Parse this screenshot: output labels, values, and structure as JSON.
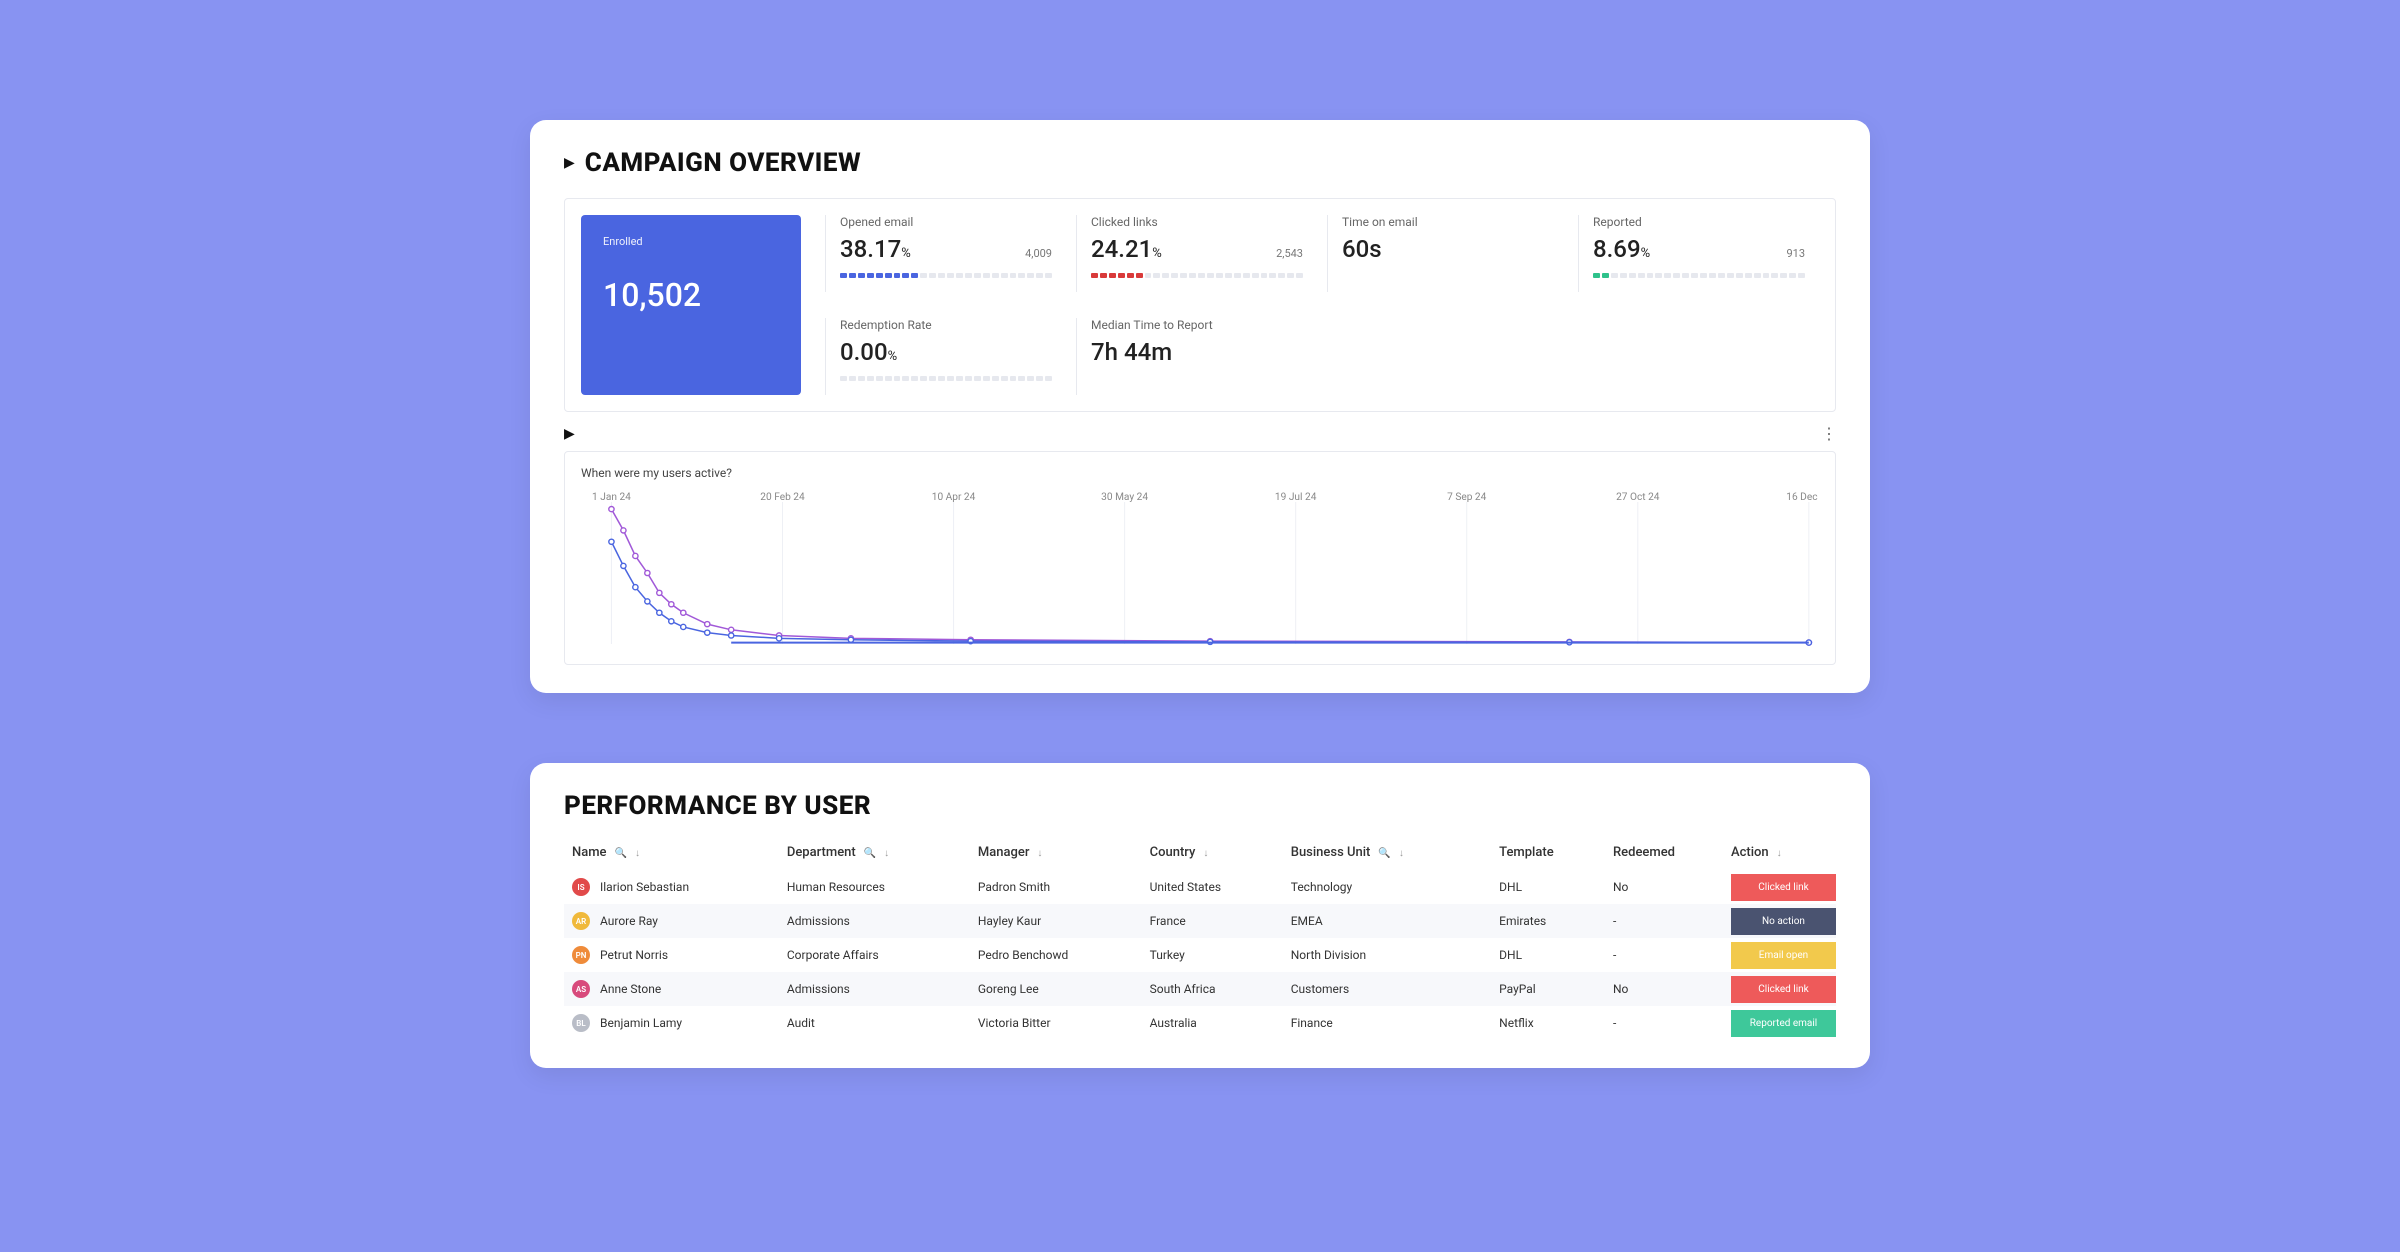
{
  "background_color": "#8893f2",
  "overview": {
    "title": "CAMPAIGN OVERVIEW",
    "enrolled": {
      "label": "Enrolled",
      "value": "10,502",
      "bg_color": "#4a65e0"
    },
    "metrics": [
      {
        "label": "Opened email",
        "value": "38.17",
        "unit": "%",
        "count": "4,009",
        "fill_segments": 9,
        "total_segments": 24,
        "fill_color": "#4a65e0"
      },
      {
        "label": "Clicked links",
        "value": "24.21",
        "unit": "%",
        "count": "2,543",
        "fill_segments": 6,
        "total_segments": 24,
        "fill_color": "#d93a3a"
      },
      {
        "label": "Time on email",
        "value": "60s",
        "unit": "",
        "count": "",
        "fill_segments": 0,
        "total_segments": 0,
        "fill_color": ""
      },
      {
        "label": "Reported",
        "value": "8.69",
        "unit": "%",
        "count": "913",
        "fill_segments": 2,
        "total_segments": 24,
        "fill_color": "#2ec28b"
      },
      {
        "label": "Redemption Rate",
        "value": "0.00",
        "unit": "%",
        "count": "",
        "fill_segments": 0,
        "total_segments": 24,
        "fill_color": "#4a65e0"
      },
      {
        "label": "Median Time to Report",
        "value": "7h 44m",
        "unit": "",
        "count": "",
        "fill_segments": 0,
        "total_segments": 0,
        "fill_color": ""
      }
    ],
    "chart": {
      "title": "When were my users active?",
      "x_ticks": [
        "1 Jan 24",
        "20 Feb 24",
        "10 Apr 24",
        "30 May 24",
        "19 Jul 24",
        "7 Sep 24",
        "27 Oct 24",
        "16 Dec 24"
      ],
      "grid_color": "#eef0f5",
      "series": [
        {
          "color": "#a159d8",
          "marker": "circle",
          "points": [
            [
              0,
              0.95
            ],
            [
              1,
              0.8
            ],
            [
              2,
              0.62
            ],
            [
              3,
              0.5
            ],
            [
              4,
              0.36
            ],
            [
              5,
              0.28
            ],
            [
              6,
              0.22
            ],
            [
              8,
              0.14
            ],
            [
              10,
              0.1
            ],
            [
              14,
              0.06
            ],
            [
              20,
              0.04
            ],
            [
              30,
              0.03
            ],
            [
              50,
              0.02
            ],
            [
              80,
              0.015
            ],
            [
              100,
              0.01
            ]
          ]
        },
        {
          "color": "#4a65e0",
          "marker": "circle",
          "points": [
            [
              0,
              0.72
            ],
            [
              1,
              0.55
            ],
            [
              2,
              0.4
            ],
            [
              3,
              0.3
            ],
            [
              4,
              0.22
            ],
            [
              5,
              0.16
            ],
            [
              6,
              0.12
            ],
            [
              8,
              0.08
            ],
            [
              10,
              0.06
            ],
            [
              14,
              0.04
            ],
            [
              20,
              0.03
            ],
            [
              30,
              0.02
            ],
            [
              50,
              0.015
            ],
            [
              80,
              0.012
            ],
            [
              100,
              0.01
            ]
          ]
        }
      ],
      "x_domain": [
        0,
        100
      ],
      "y_domain": [
        0,
        1
      ]
    }
  },
  "performance": {
    "title": "PERFORMANCE BY USER",
    "columns": [
      {
        "label": "Name",
        "controls": "search-sort"
      },
      {
        "label": "Department",
        "controls": "search-sort"
      },
      {
        "label": "Manager",
        "controls": "sort"
      },
      {
        "label": "Country",
        "controls": "sort"
      },
      {
        "label": "Business Unit",
        "controls": "search-sort"
      },
      {
        "label": "Template",
        "controls": ""
      },
      {
        "label": "Redeemed",
        "controls": ""
      },
      {
        "label": "Action",
        "controls": "sort"
      }
    ],
    "rows": [
      {
        "avatar_color": "#e14a4a",
        "initials": "IS",
        "name": "Ilarion Sebastian",
        "department": "Human Resources",
        "manager": "Padron Smith",
        "country": "United States",
        "bu": "Technology",
        "template": "DHL",
        "redeemed": "No",
        "action": "Clicked link",
        "action_color": "#ee5a5a"
      },
      {
        "avatar_color": "#f0b93b",
        "initials": "AR",
        "name": "Aurore Ray",
        "department": "Admissions",
        "manager": "Hayley Kaur",
        "country": "France",
        "bu": "EMEA",
        "template": "Emirates",
        "redeemed": "-",
        "action": "No action",
        "action_color": "#4a5370"
      },
      {
        "avatar_color": "#ef8b3a",
        "initials": "PN",
        "name": "Petrut Norris",
        "department": "Corporate Affairs",
        "manager": "Pedro Benchowd",
        "country": "Turkey",
        "bu": "North Division",
        "template": "DHL",
        "redeemed": "-",
        "action": "Email open",
        "action_color": "#f2c94c"
      },
      {
        "avatar_color": "#d84a7c",
        "initials": "AS",
        "name": "Anne Stone",
        "department": "Admissions",
        "manager": "Goreng Lee",
        "country": "South Africa",
        "bu": "Customers",
        "template": "PayPal",
        "redeemed": "No",
        "action": "Clicked link",
        "action_color": "#ee5a5a"
      },
      {
        "avatar_color": "#b9bdc7",
        "initials": "BL",
        "name": "Benjamin Lamy",
        "department": "Audit",
        "manager": "Victoria Bitter",
        "country": "Australia",
        "bu": "Finance",
        "template": "Netflix",
        "redeemed": "-",
        "action": "Reported email",
        "action_color": "#3ec89a"
      }
    ]
  }
}
